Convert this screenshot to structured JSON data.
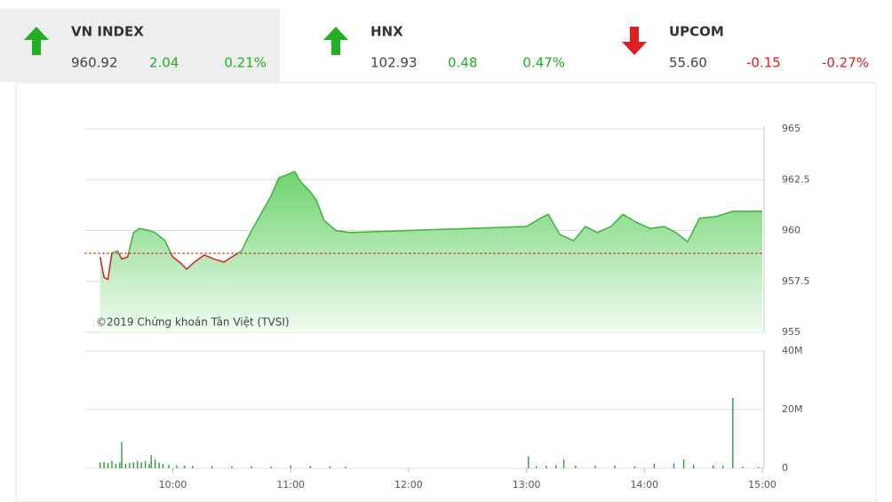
{
  "header": {
    "indices": [
      {
        "name": "VN INDEX",
        "value": "960.92",
        "change": "2.04",
        "percent": "0.21%",
        "direction": "up"
      },
      {
        "name": "HNX",
        "value": "102.93",
        "change": "0.48",
        "percent": "0.47%",
        "direction": "up"
      },
      {
        "name": "UPCOM",
        "value": "55.60",
        "change": "-0.15",
        "percent": "-0.27%",
        "direction": "down"
      }
    ]
  },
  "chart_data": [
    {
      "type": "area",
      "watermark": "©2019 Chứng khoán Tân Việt (TVSI)",
      "x": [
        "09:23",
        "09:25",
        "09:27",
        "09:29",
        "09:32",
        "09:34",
        "09:37",
        "09:40",
        "09:43",
        "09:48",
        "09:51",
        "09:56",
        "10:00",
        "10:04",
        "10:07",
        "10:11",
        "10:16",
        "10:21",
        "10:26",
        "10:30",
        "10:35",
        "10:39",
        "10:45",
        "10:50",
        "10:54",
        "10:57",
        "11:02",
        "11:05",
        "11:10",
        "11:13",
        "11:17",
        "11:23",
        "11:30",
        "13:00",
        "13:07",
        "13:11",
        "13:17",
        "13:24",
        "13:30",
        "13:36",
        "13:43",
        "13:49",
        "13:56",
        "14:03",
        "14:10",
        "14:16",
        "14:22",
        "14:28",
        "14:37",
        "14:45",
        "15:00"
      ],
      "values": [
        958.7,
        957.7,
        957.6,
        958.9,
        959.0,
        958.6,
        958.7,
        959.9,
        960.1,
        960.0,
        959.9,
        959.5,
        958.7,
        958.4,
        958.1,
        958.45,
        958.8,
        958.6,
        958.45,
        958.7,
        959.0,
        959.8,
        960.85,
        961.7,
        962.6,
        962.7,
        962.9,
        962.4,
        961.9,
        961.5,
        960.5,
        960.0,
        959.9,
        960.2,
        960.6,
        960.8,
        959.8,
        959.5,
        960.2,
        959.9,
        960.2,
        960.8,
        960.4,
        960.1,
        960.2,
        959.9,
        959.45,
        960.6,
        960.7,
        960.95,
        960.95
      ],
      "reference": 958.88,
      "up_color": "#3cb43c",
      "down_color": "#d42020",
      "reference_color": "#d42020",
      "xlim": [
        "09:15",
        "15:00"
      ],
      "ylim": [
        955,
        965
      ],
      "yticks": [
        955,
        957.5,
        960,
        962.5,
        965
      ],
      "grid": true
    },
    {
      "type": "bar",
      "color": "#2e9e2e",
      "x": [
        "09:23",
        "09:25",
        "09:27",
        "09:29",
        "09:31",
        "09:33",
        "09:34",
        "09:36",
        "09:38",
        "09:40",
        "09:42",
        "09:44",
        "09:46",
        "09:48",
        "09:49",
        "09:51",
        "09:53",
        "09:55",
        "09:58",
        "10:02",
        "10:06",
        "10:10",
        "10:20",
        "10:30",
        "10:40",
        "10:50",
        "11:00",
        "11:10",
        "11:20",
        "11:28",
        "13:01",
        "13:05",
        "13:10",
        "13:15",
        "13:19",
        "13:25",
        "13:35",
        "13:45",
        "13:55",
        "14:05",
        "14:15",
        "14:20",
        "14:25",
        "14:35",
        "14:40",
        "14:45",
        "14:50",
        "14:58"
      ],
      "values": [
        2000000,
        2200000,
        1800000,
        2500000,
        1500000,
        2000000,
        9000000,
        1500000,
        1800000,
        2000000,
        2500000,
        2000000,
        2500000,
        1500000,
        4500000,
        3000000,
        2000000,
        1500000,
        1200000,
        1000000,
        900000,
        800000,
        700000,
        600000,
        700000,
        600000,
        1000000,
        800000,
        600000,
        500000,
        4000000,
        700000,
        900000,
        1000000,
        3000000,
        900000,
        800000,
        900000,
        700000,
        1500000,
        1600000,
        3000000,
        1200000,
        1000000,
        900000,
        24000000,
        500000,
        400000
      ],
      "xlim": [
        "09:15",
        "15:00"
      ],
      "ylim": [
        0,
        40000000
      ],
      "yticks": [
        0,
        {
          "value": 20000000,
          "label": "20M"
        },
        {
          "value": 40000000,
          "label": "40M"
        }
      ],
      "xticks": [
        "10:00",
        "11:00",
        "12:00",
        "13:00",
        "14:00",
        "15:00"
      ],
      "grid": true
    }
  ]
}
